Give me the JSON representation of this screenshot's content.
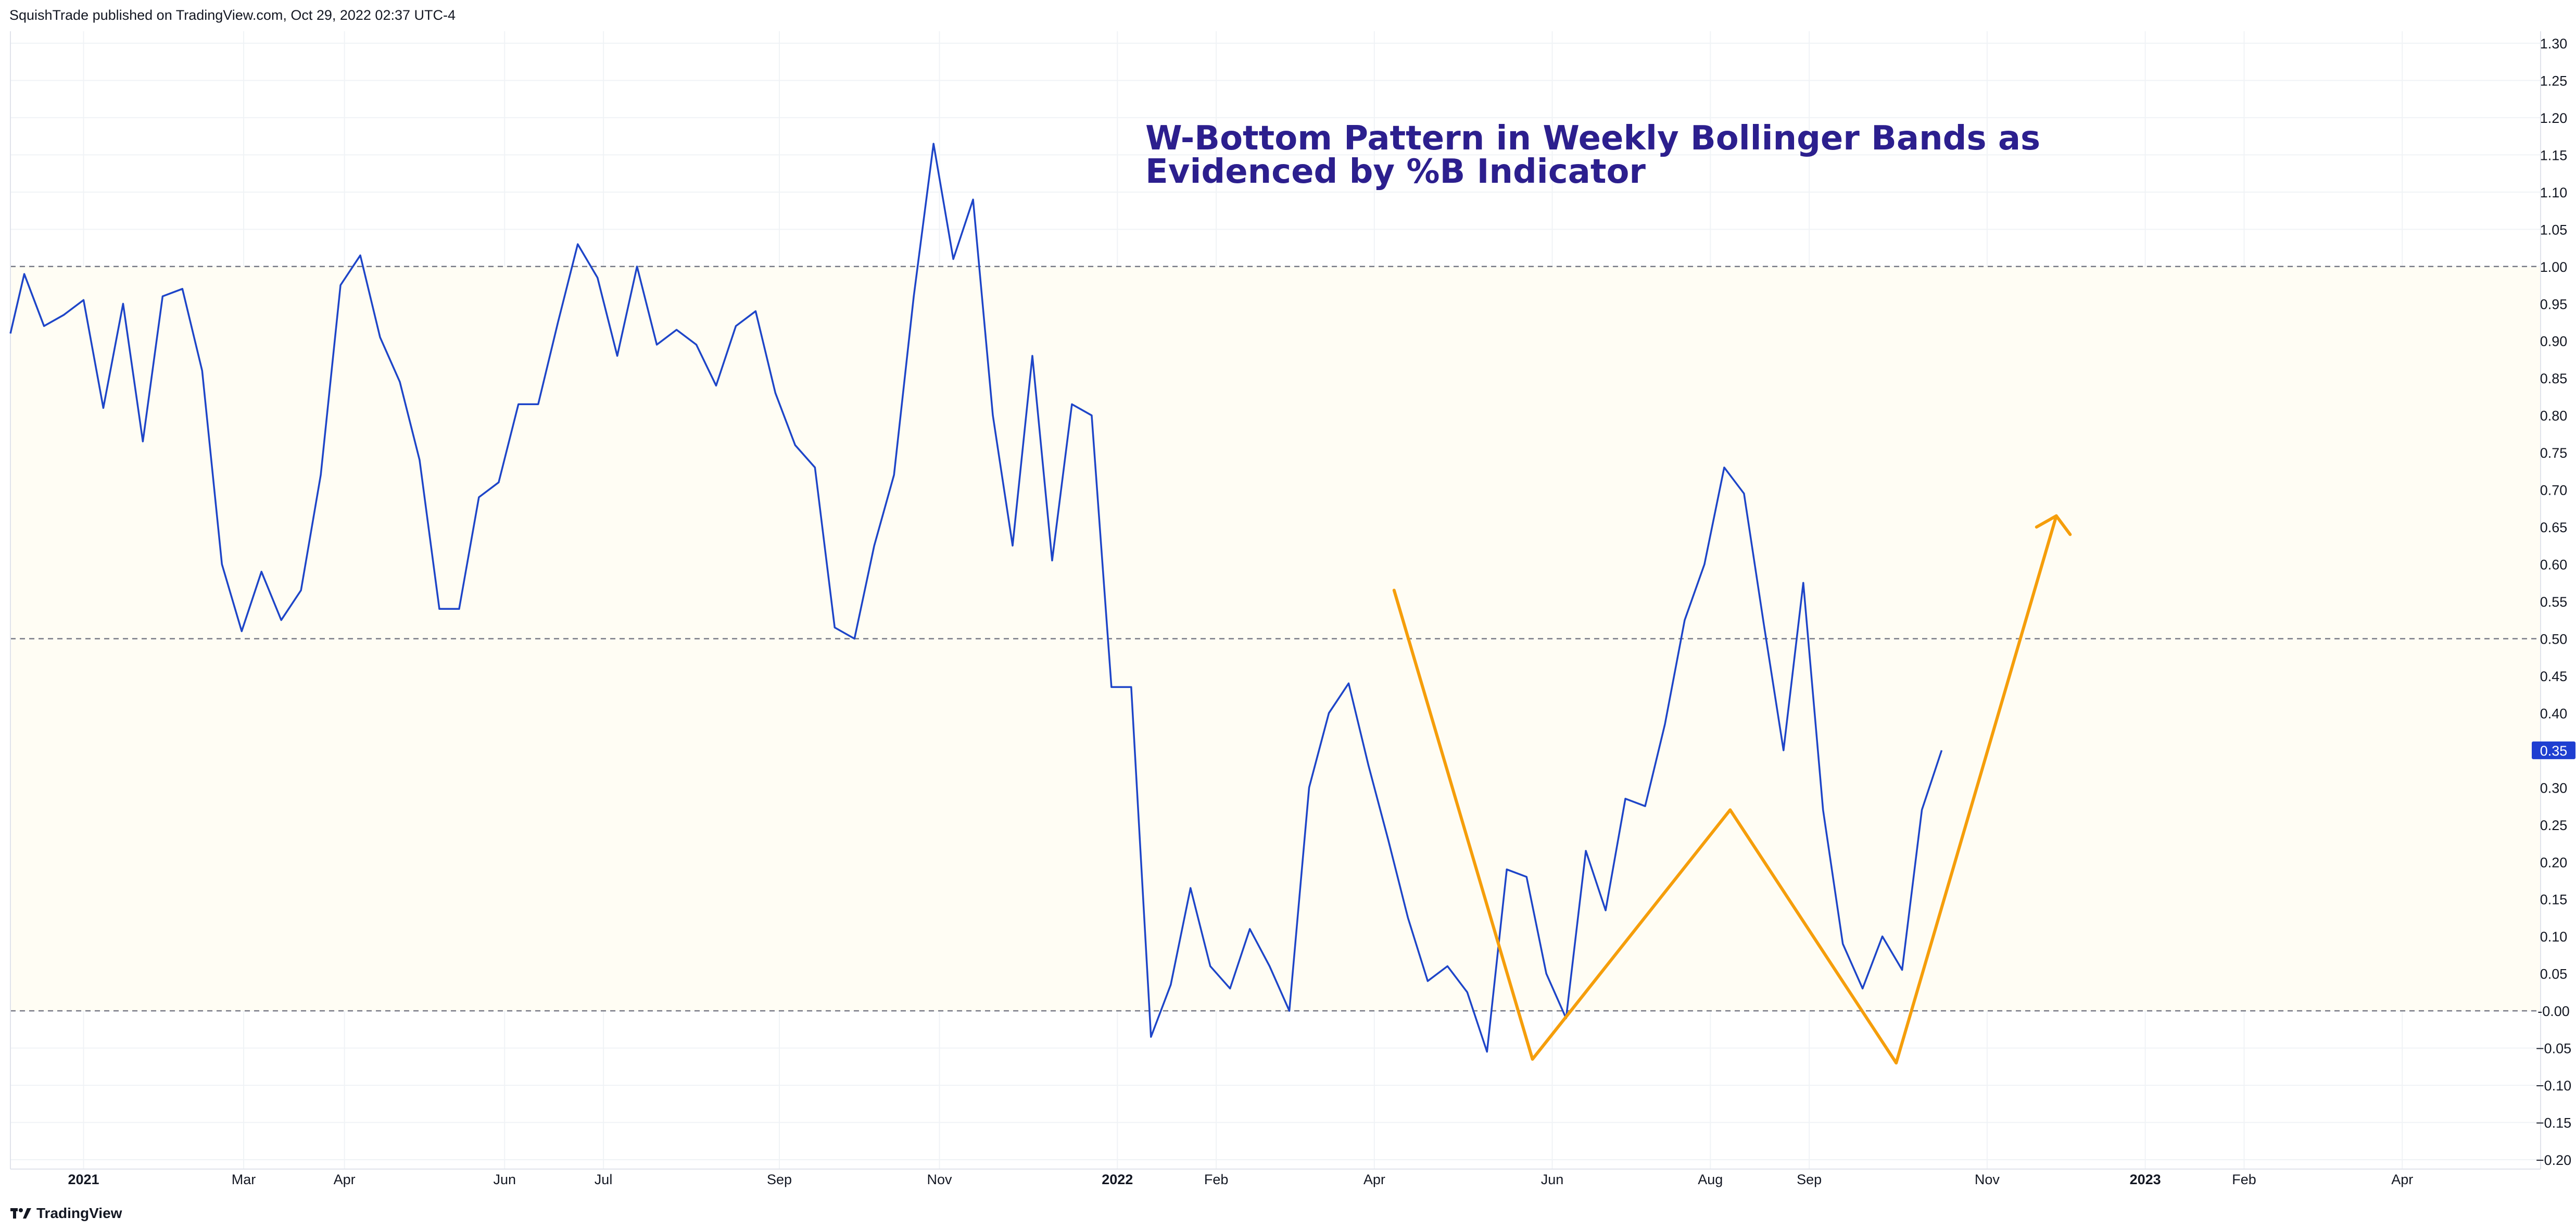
{
  "header": {
    "published_by": "SquishTrade published on TradingView.com, Oct 29, 2022 02:37 UTC-4"
  },
  "footer": {
    "brand": "TradingView",
    "brand_icon": "tradingview-logo-icon"
  },
  "colors": {
    "series_line": "#1e45c8",
    "annotation_line": "#f59e0b",
    "band_fill": "#fffdf4",
    "annotation_text": "#2c1f8e",
    "price_badge": "#1f3fd1",
    "gridline": "#f0f3f6",
    "dashed_level": "#787b86"
  },
  "chart_data": {
    "type": "line",
    "title": "W-Bottom Pattern in Weekly Bollinger Bands as Evidenced by %B Indicator",
    "title_lines": [
      "W-Bottom Pattern in Weekly Bollinger Bands as",
      "Evidenced by %B Indicator"
    ],
    "xlabel": "",
    "ylabel": "",
    "ylim": [
      -0.2,
      1.3
    ],
    "y_ticks": [
      "1.30",
      "1.25",
      "1.20",
      "1.15",
      "1.10",
      "1.05",
      "1.00",
      "0.95",
      "0.90",
      "0.85",
      "0.80",
      "0.75",
      "0.70",
      "0.65",
      "0.60",
      "0.55",
      "0.50",
      "0.45",
      "0.40",
      "0.35",
      "0.30",
      "0.25",
      "0.20",
      "0.15",
      "0.10",
      "0.05",
      "-0.00",
      "−0.05",
      "−0.10",
      "−0.15",
      "−0.20"
    ],
    "y_tick_values": [
      1.3,
      1.25,
      1.2,
      1.15,
      1.1,
      1.05,
      1.0,
      0.95,
      0.9,
      0.85,
      0.8,
      0.75,
      0.7,
      0.65,
      0.6,
      0.55,
      0.5,
      0.45,
      0.4,
      0.35,
      0.3,
      0.25,
      0.2,
      0.15,
      0.1,
      0.05,
      0.0,
      -0.05,
      -0.1,
      -0.15,
      -0.2
    ],
    "x_range_week_index": [
      0,
      128
    ],
    "x_ticks": [
      {
        "label": "2021",
        "week": 3.7,
        "bold": true
      },
      {
        "label": "Mar",
        "week": 11.8
      },
      {
        "label": "Apr",
        "week": 16.9
      },
      {
        "label": "Jun",
        "week": 25.0
      },
      {
        "label": "Jul",
        "week": 30.0
      },
      {
        "label": "Sep",
        "week": 38.9
      },
      {
        "label": "Nov",
        "week": 47.0
      },
      {
        "label": "2022",
        "week": 56.0,
        "bold": true
      },
      {
        "label": "Feb",
        "week": 61.0
      },
      {
        "label": "Apr",
        "week": 69.0
      },
      {
        "label": "Jun",
        "week": 78.0
      },
      {
        "label": "Aug",
        "week": 86.0
      },
      {
        "label": "Sep",
        "week": 91.0
      },
      {
        "label": "Nov",
        "week": 100.0
      },
      {
        "label": "2023",
        "week": 108.0,
        "bold": true
      },
      {
        "label": "Feb",
        "week": 113.0
      },
      {
        "label": "Apr",
        "week": 121.0
      }
    ],
    "reference_levels": [
      1.0,
      0.5,
      0.0
    ],
    "band": [
      0.0,
      1.0
    ],
    "last_value": 0.35,
    "last_value_label": "0.35",
    "series": [
      {
        "name": "%B",
        "values": [
          [
            0,
            0.91
          ],
          [
            0.7,
            0.99
          ],
          [
            1.7,
            0.92
          ],
          [
            2.7,
            0.935
          ],
          [
            3.7,
            0.955
          ],
          [
            4.7,
            0.81
          ],
          [
            5.7,
            0.95
          ],
          [
            6.7,
            0.765
          ],
          [
            7.7,
            0.96
          ],
          [
            8.7,
            0.97
          ],
          [
            9.7,
            0.86
          ],
          [
            10.7,
            0.6
          ],
          [
            11.7,
            0.51
          ],
          [
            12.7,
            0.59
          ],
          [
            13.7,
            0.525
          ],
          [
            14.7,
            0.565
          ],
          [
            15.7,
            0.72
          ],
          [
            16.7,
            0.975
          ],
          [
            17.7,
            1.015
          ],
          [
            18.7,
            0.905
          ],
          [
            19.7,
            0.845
          ],
          [
            20.7,
            0.74
          ],
          [
            21.7,
            0.54
          ],
          [
            22.7,
            0.54
          ],
          [
            23.7,
            0.69
          ],
          [
            24.7,
            0.71
          ],
          [
            25.7,
            0.815
          ],
          [
            26.7,
            0.815
          ],
          [
            27.7,
            0.925
          ],
          [
            28.7,
            1.03
          ],
          [
            29.7,
            0.985
          ],
          [
            30.7,
            0.88
          ],
          [
            31.7,
            1.0
          ],
          [
            32.7,
            0.895
          ],
          [
            33.7,
            0.915
          ],
          [
            34.7,
            0.895
          ],
          [
            35.7,
            0.84
          ],
          [
            36.7,
            0.92
          ],
          [
            37.7,
            0.94
          ],
          [
            38.7,
            0.83
          ],
          [
            39.7,
            0.76
          ],
          [
            40.7,
            0.73
          ],
          [
            41.7,
            0.515
          ],
          [
            42.7,
            0.5
          ],
          [
            43.7,
            0.625
          ],
          [
            44.7,
            0.72
          ],
          [
            45.7,
            0.96
          ],
          [
            46.7,
            1.165
          ],
          [
            47.7,
            1.01
          ],
          [
            48.7,
            1.09
          ],
          [
            49.7,
            0.8
          ],
          [
            50.7,
            0.625
          ],
          [
            51.7,
            0.88
          ],
          [
            52.7,
            0.605
          ],
          [
            53.7,
            0.815
          ],
          [
            54.7,
            0.8
          ],
          [
            55.7,
            0.435
          ],
          [
            56.7,
            0.435
          ],
          [
            57.7,
            -0.035
          ],
          [
            58.7,
            0.035
          ],
          [
            59.7,
            0.165
          ],
          [
            60.7,
            0.06
          ],
          [
            61.7,
            0.03
          ],
          [
            62.7,
            0.11
          ],
          [
            63.7,
            0.06
          ],
          [
            64.7,
            0.0
          ],
          [
            65.7,
            0.3
          ],
          [
            66.7,
            0.4
          ],
          [
            67.7,
            0.44
          ],
          [
            68.7,
            0.33
          ],
          [
            69.7,
            0.23
          ],
          [
            70.7,
            0.125
          ],
          [
            71.7,
            0.04
          ],
          [
            72.7,
            0.06
          ],
          [
            73.7,
            0.025
          ],
          [
            74.7,
            -0.055
          ],
          [
            75.7,
            0.19
          ],
          [
            76.7,
            0.18
          ],
          [
            77.7,
            0.05
          ],
          [
            78.7,
            -0.01
          ],
          [
            79.7,
            0.215
          ],
          [
            80.7,
            0.135
          ],
          [
            81.7,
            0.285
          ],
          [
            82.7,
            0.275
          ],
          [
            83.7,
            0.385
          ],
          [
            84.7,
            0.525
          ],
          [
            85.7,
            0.6
          ],
          [
            86.7,
            0.73
          ],
          [
            87.7,
            0.695
          ],
          [
            88.7,
            0.52
          ],
          [
            89.7,
            0.35
          ],
          [
            90.7,
            0.575
          ],
          [
            91.7,
            0.27
          ],
          [
            92.7,
            0.09
          ],
          [
            93.7,
            0.03
          ],
          [
            94.7,
            0.1
          ],
          [
            95.7,
            0.055
          ],
          [
            96.7,
            0.27
          ],
          [
            97.7,
            0.35
          ]
        ]
      }
    ],
    "annotation_w_pattern": [
      [
        70.0,
        0.565
      ],
      [
        77.0,
        -0.065
      ],
      [
        87.0,
        0.27
      ],
      [
        95.4,
        -0.07
      ],
      [
        103.5,
        0.665
      ]
    ],
    "annotation_arrowhead": [
      [
        102.5,
        0.65
      ],
      [
        103.5,
        0.665
      ],
      [
        104.2,
        0.64
      ]
    ]
  }
}
